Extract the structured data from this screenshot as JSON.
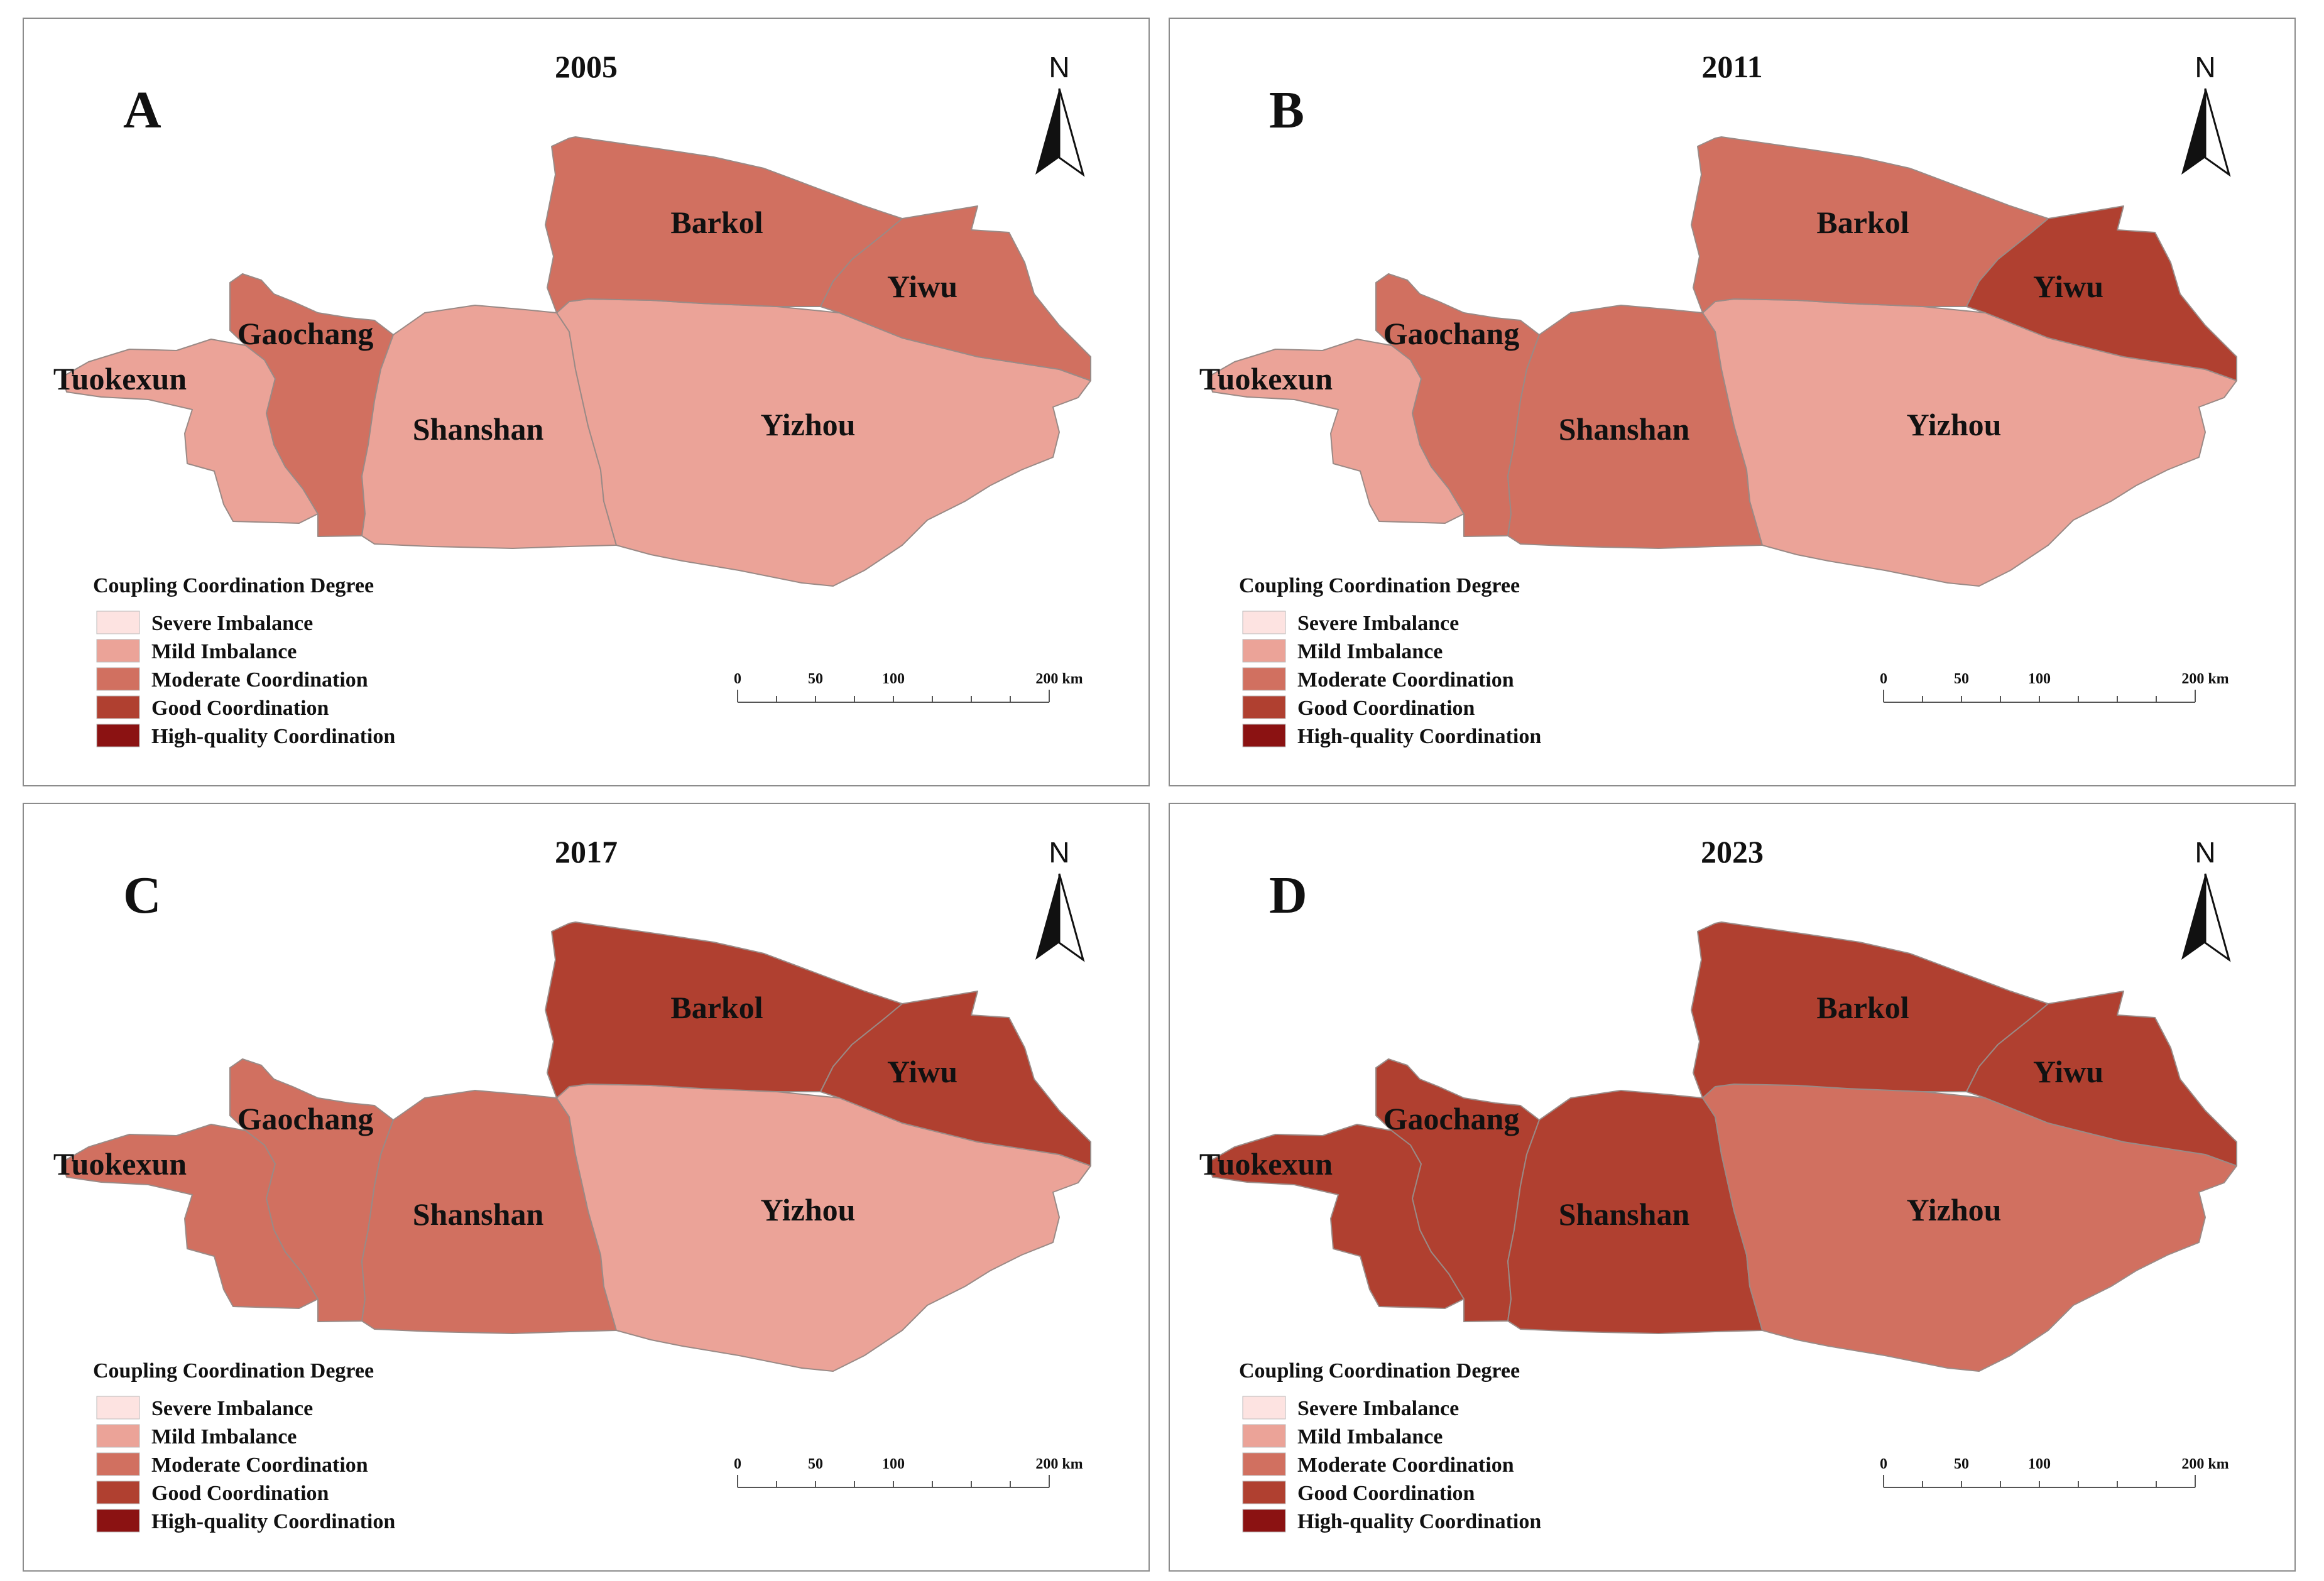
{
  "legend": {
    "title": "Coupling Coordination Degree",
    "classes": [
      {
        "label": "Severe Imbalance",
        "color": "#fde3e1"
      },
      {
        "label": "Mild Imbalance",
        "color": "#eba398"
      },
      {
        "label": "Moderate Coordination",
        "color": "#d17060"
      },
      {
        "label": "Good Coordination",
        "color": "#b04030"
      },
      {
        "label": "High-quality Coordination",
        "color": "#8b1212"
      }
    ]
  },
  "north_label": "N",
  "scale_bar": {
    "ticks": [
      "0",
      "50",
      "100",
      "200 km"
    ]
  },
  "region_names": {
    "tuokexun": "Tuokexun",
    "gaochang": "Gaochang",
    "shanshan": "Shanshan",
    "yizhou": "Yizhou",
    "barkol": "Barkol",
    "yiwu": "Yiwu"
  },
  "panels": [
    {
      "letter": "A",
      "year": "2005",
      "classes": {
        "tuokexun": "Mild Imbalance",
        "gaochang": "Moderate Coordination",
        "shanshan": "Mild Imbalance",
        "yizhou": "Mild Imbalance",
        "barkol": "Moderate Coordination",
        "yiwu": "Moderate Coordination"
      }
    },
    {
      "letter": "B",
      "year": "2011",
      "classes": {
        "tuokexun": "Mild Imbalance",
        "gaochang": "Moderate Coordination",
        "shanshan": "Moderate Coordination",
        "yizhou": "Mild Imbalance",
        "barkol": "Moderate Coordination",
        "yiwu": "Good Coordination"
      }
    },
    {
      "letter": "C",
      "year": "2017",
      "classes": {
        "tuokexun": "Moderate Coordination",
        "gaochang": "Moderate Coordination",
        "shanshan": "Moderate Coordination",
        "yizhou": "Mild Imbalance",
        "barkol": "Good Coordination",
        "yiwu": "Good Coordination"
      }
    },
    {
      "letter": "D",
      "year": "2023",
      "classes": {
        "tuokexun": "Good Coordination",
        "gaochang": "Good Coordination",
        "shanshan": "Good Coordination",
        "yizhou": "Moderate Coordination",
        "barkol": "Good Coordination",
        "yiwu": "Good Coordination"
      }
    }
  ]
}
